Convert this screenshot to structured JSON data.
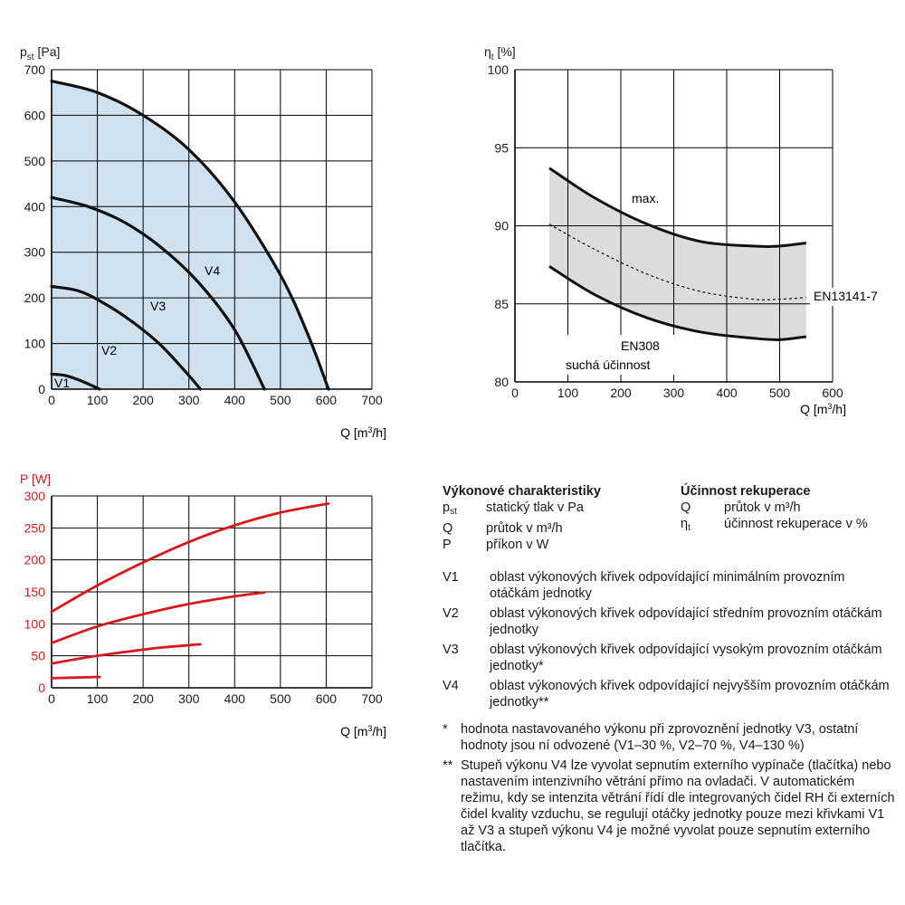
{
  "chart_data": [
    {
      "type": "line",
      "id": "pressure",
      "ylabel_main": "p",
      "ylabel_sub": "st",
      "ylabel_unit": " [Pa]",
      "xlabel_main": "Q [m",
      "xlabel_sup": "3",
      "xlabel_tail": "/h]",
      "xlim": [
        0,
        700
      ],
      "ylim": [
        0,
        700
      ],
      "xticks": [
        0,
        100,
        200,
        300,
        400,
        500,
        600,
        700
      ],
      "yticks": [
        0,
        100,
        200,
        300,
        400,
        500,
        600,
        700
      ],
      "grid": true,
      "fill_color": "#cfe1ef",
      "series": [
        {
          "name": "V1",
          "x": [
            0,
            30,
            60,
            90,
            105
          ],
          "y": [
            33,
            30,
            20,
            7,
            0
          ]
        },
        {
          "name": "V2",
          "x": [
            0,
            60,
            120,
            180,
            240,
            300,
            325
          ],
          "y": [
            225,
            215,
            185,
            145,
            95,
            30,
            0
          ]
        },
        {
          "name": "V3",
          "x": [
            0,
            80,
            160,
            240,
            320,
            400,
            465
          ],
          "y": [
            420,
            400,
            365,
            310,
            235,
            130,
            0
          ]
        },
        {
          "name": "V4",
          "x": [
            0,
            100,
            200,
            300,
            400,
            500,
            560,
            605
          ],
          "y": [
            675,
            650,
            600,
            525,
            410,
            250,
            120,
            0
          ]
        }
      ]
    },
    {
      "type": "area",
      "id": "efficiency",
      "ylabel_main": "η",
      "ylabel_sub": "t",
      "ylabel_unit": " [%]",
      "xlabel_main": "Q [m",
      "xlabel_sup": "3",
      "xlabel_tail": "/h]",
      "xlim": [
        0,
        600
      ],
      "ylim": [
        80,
        100
      ],
      "xticks": [
        0,
        100,
        200,
        300,
        400,
        500,
        600
      ],
      "yticks": [
        80,
        85,
        90,
        95,
        100
      ],
      "grid": true,
      "fill_color": "#dcdcdc",
      "series": [
        {
          "name": "max.",
          "x": [
            65,
            150,
            250,
            350,
            450,
            500,
            550
          ],
          "y": [
            93.7,
            91.8,
            90.1,
            89.0,
            88.7,
            88.7,
            88.9
          ]
        },
        {
          "name": "EN13141-7",
          "x": [
            65,
            150,
            250,
            350,
            450,
            500,
            550
          ],
          "y": [
            90.1,
            88.5,
            86.9,
            85.8,
            85.3,
            85.3,
            85.4
          ]
        },
        {
          "name": "EN308",
          "x": [
            65,
            150,
            250,
            350,
            450,
            500,
            550
          ],
          "y": [
            87.4,
            85.6,
            84.1,
            83.2,
            82.8,
            82.7,
            82.9
          ]
        }
      ],
      "labels": {
        "max": "max.",
        "en13141": "EN13141-7",
        "en308": "EN308",
        "dry": "suchá účinnost"
      }
    },
    {
      "type": "line",
      "id": "power",
      "ylabel_main": "P [W]",
      "xlabel_main": "Q [m",
      "xlabel_sup": "3",
      "xlabel_tail": "/h]",
      "xlim": [
        0,
        700
      ],
      "ylim": [
        0,
        300
      ],
      "xticks": [
        0,
        100,
        200,
        300,
        400,
        500,
        600,
        700
      ],
      "yticks": [
        0,
        50,
        100,
        150,
        200,
        250,
        300
      ],
      "grid": true,
      "color": "#d7191c",
      "series": [
        {
          "name": "V1",
          "x": [
            0,
            105
          ],
          "y": [
            15,
            17
          ]
        },
        {
          "name": "V2",
          "x": [
            0,
            80,
            160,
            240,
            325
          ],
          "y": [
            38,
            48,
            56,
            63,
            68
          ]
        },
        {
          "name": "V3",
          "x": [
            0,
            100,
            200,
            300,
            400,
            465
          ],
          "y": [
            70,
            96,
            115,
            131,
            143,
            149
          ]
        },
        {
          "name": "V4",
          "x": [
            0,
            100,
            200,
            300,
            400,
            500,
            605
          ],
          "y": [
            119,
            160,
            196,
            228,
            254,
            274,
            288
          ]
        }
      ]
    }
  ],
  "legend": {
    "perf_title": "Výkonové charakteristiky",
    "eff_title": "Účinnost rekuperace",
    "perf_items": [
      {
        "sym": "p",
        "sub": "st",
        "desc": "statický tlak v Pa"
      },
      {
        "sym": "Q",
        "sub": "",
        "desc": "průtok v m³/h"
      },
      {
        "sym": "P",
        "sub": "",
        "desc": "příkon v W"
      }
    ],
    "eff_items": [
      {
        "sym": "Q",
        "sub": "",
        "desc": "průtok v m³/h"
      },
      {
        "sym": "η",
        "sub": "t",
        "desc": "účinnost rekuperace v %"
      }
    ]
  },
  "definitions": [
    {
      "key": "V1",
      "text": "oblast výkonových křivek odpovídající minimálním provozním otáčkám jednotky"
    },
    {
      "key": "V2",
      "text": "oblast výkonových křivek odpovídající středním provozním otáčkám jednotky"
    },
    {
      "key": "V3",
      "text": "oblast výkonových křivek odpovídající vysokým provozním otáčkám jednotky*"
    },
    {
      "key": "V4",
      "text": "oblast výkonových křivek odpovídající nejvyšším provozním otáčkám jednotky**"
    }
  ],
  "footnotes": [
    {
      "key": "*",
      "text": "hodnota nastavovaného výkonu při zprovoznění jednotky V3, ostatní hodnoty jsou ní odvozené (V1–30 %, V2–70 %, V4–130 %)"
    },
    {
      "key": "**",
      "text": "Stupeň výkonu V4 lze vyvolat sepnutím externího vypínače (tlačítka) nebo nastavením intenzivního větrání přímo na ovladači. V automatickém režimu, kdy se intenzita větrání řídí dle integrovaných čidel RH či externích čidel kvality vzduchu, se regulují otáčky jednotky pouze mezi křivkami V1 až V3 a stupeň výkonu V4 je možné vyvolat pouze sepnutím externího tlačítka."
    }
  ]
}
